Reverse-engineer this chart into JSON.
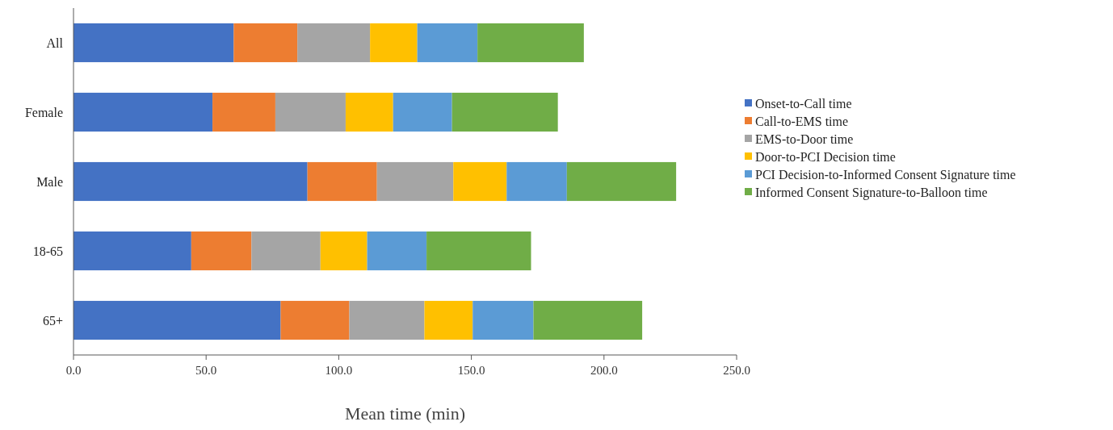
{
  "chart_data": {
    "type": "bar",
    "orientation": "horizontal",
    "stacked": true,
    "xlabel": "Mean time (min)",
    "categories": [
      "All",
      "Female",
      "Male",
      "18-65",
      "65+"
    ],
    "series": [
      {
        "name": "Onset-to-Call time",
        "color": "#4472c4",
        "values": [
          60.4,
          52.4,
          88.2,
          44.4,
          78.1
        ]
      },
      {
        "name": "Call-to-EMS time",
        "color": "#ed7d31",
        "values": [
          24.0,
          23.7,
          26.2,
          22.7,
          25.9
        ]
      },
      {
        "name": "EMS-to-Door time",
        "color": "#a5a5a5",
        "values": [
          27.4,
          26.5,
          28.8,
          26.0,
          28.3
        ]
      },
      {
        "name": "Door-to-PCI Decision time",
        "color": "#ffc000",
        "values": [
          17.8,
          17.9,
          20.1,
          17.6,
          18.2
        ]
      },
      {
        "name": "PCI Decision-to-Informed Consent Signature time",
        "color": "#5b9bd5",
        "values": [
          22.7,
          22.2,
          22.7,
          22.4,
          22.9
        ]
      },
      {
        "name": "Informed Consent Signature-to-Balloon time",
        "color": "#70ad47",
        "values": [
          40.1,
          39.9,
          41.2,
          39.4,
          41.0
        ]
      }
    ],
    "xlim": [
      0,
      250
    ],
    "xticks": [
      {
        "value": 0,
        "label": "0.0"
      },
      {
        "value": 50,
        "label": "50.0"
      },
      {
        "value": 100,
        "label": "100.0"
      },
      {
        "value": 150,
        "label": "150.0"
      },
      {
        "value": 200,
        "label": "200.0"
      },
      {
        "value": 250,
        "label": "250.0"
      }
    ],
    "legend": "right",
    "grid": false
  }
}
